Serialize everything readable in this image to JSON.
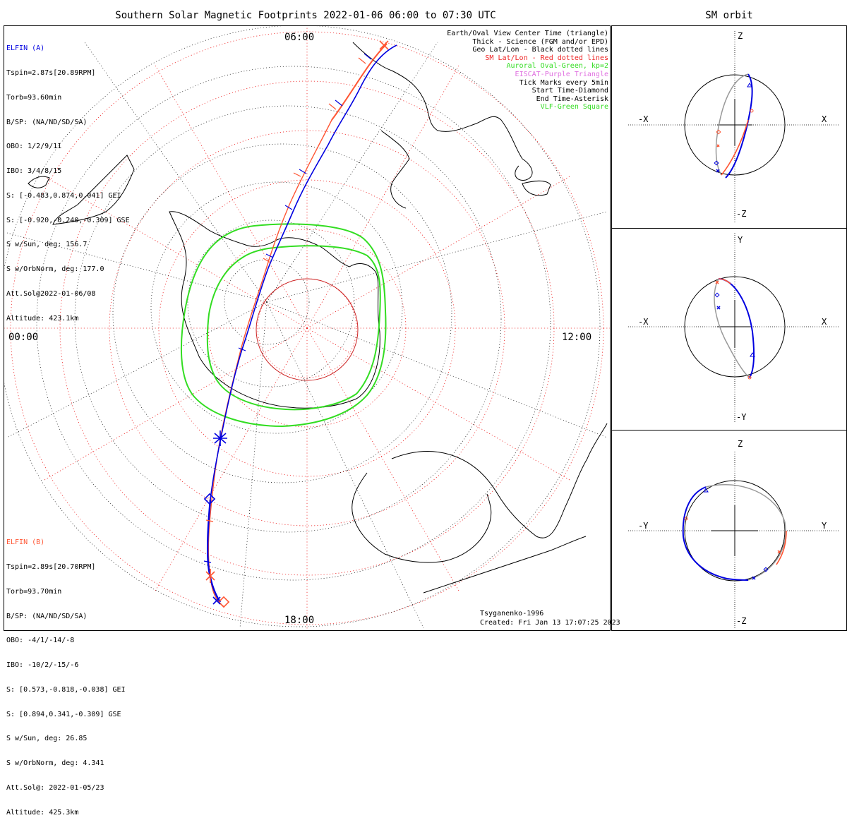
{
  "title": "Southern Solar Magnetic Footprints 2022-01-06 06:00 to 07:30 UTC",
  "sm_title": "SM orbit",
  "clock_labels": {
    "top": "06:00",
    "left": "00:00",
    "right": "12:00",
    "bottom": "18:00"
  },
  "colors": {
    "elfin_a": "#0000e0",
    "elfin_b": "#ff5533",
    "oval": "#33dd22",
    "geo_grid": "#000000",
    "sm_grid": "#ee2222",
    "eiscat": "#e070e0"
  },
  "elfin_a": {
    "name": "ELFIN (A)",
    "lines": [
      "Tspin=2.87s[20.89RPM]",
      "Torb=93.60min",
      "B/SP: (NA/ND/SD/SA)",
      "OBO: 1/2/9/11",
      "IBO: 3/4/8/15",
      "S: [-0.483,0.874,0.041] GEI",
      "S: [-0.920,-0.240,-0.309] GSE",
      "S w/Sun, deg: 156.7",
      "S w/OrbNorm, deg: 177.0",
      "Att.Sol@2022-01-06/08",
      "Altitude: 423.1km"
    ]
  },
  "elfin_b": {
    "name": "ELFIN (B)",
    "lines": [
      "Tspin=2.89s[20.70RPM]",
      "Torb=93.70min",
      "B/SP: (NA/ND/SD/SA)",
      "OBO: -4/1/-14/-8",
      "IBO: -10/2/-15/-6",
      "S: [0.573,-0.818,-0.038] GEI",
      "S: [0.894,0.341,-0.309] GSE",
      "S w/Sun, deg: 26.85",
      "S w/OrbNorm, deg: 4.341",
      "Att.Sol@: 2022-01-05/23",
      "Altitude: 425.3km"
    ]
  },
  "legend": [
    {
      "text": "Earth/Oval View Center Time (triangle)",
      "color": "#000000"
    },
    {
      "text": "Thick - Science (FGM and/or EPD)",
      "color": "#000000"
    },
    {
      "text": "Geo Lat/Lon - Black dotted lines",
      "color": "#000000"
    },
    {
      "text": "SM Lat/Lon - Red dotted lines",
      "color": "#ee2222"
    },
    {
      "text": "Auroral Oval-Green, kp=2",
      "color": "#33dd22"
    },
    {
      "text": "EISCAT-Purple Triangle",
      "color": "#e070e0"
    },
    {
      "text": "Tick Marks every 5min",
      "color": "#000000"
    },
    {
      "text": "Start Time-Diamond",
      "color": "#000000"
    },
    {
      "text": "End Time-Asterisk",
      "color": "#000000"
    },
    {
      "text": "VLF-Green Square",
      "color": "#33dd22"
    }
  ],
  "footer": {
    "model": "Tsyganenko-1996",
    "created": "Created: Fri Jan 13 17:07:25 2023"
  },
  "panels": [
    {
      "top": "Z",
      "bottom": "-Z",
      "left": "-X",
      "right": "X"
    },
    {
      "top": "Y",
      "bottom": "-Y",
      "left": "-X",
      "right": "X"
    },
    {
      "top": "Z",
      "bottom": "-Z",
      "left": "-Y",
      "right": "Y"
    }
  ]
}
